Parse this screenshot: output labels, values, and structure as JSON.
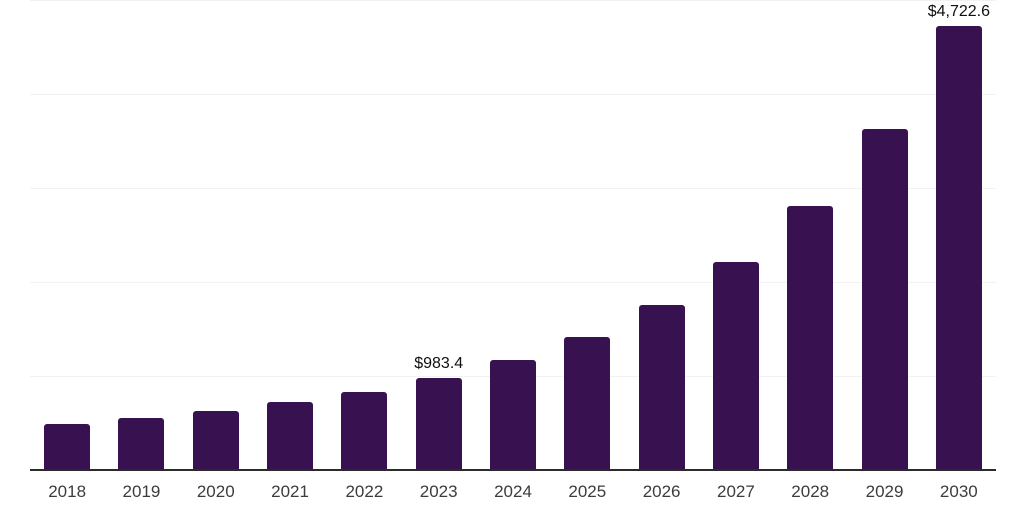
{
  "chart_data": {
    "type": "bar",
    "title": "",
    "xlabel": "",
    "ylabel": "",
    "categories": [
      "2018",
      "2019",
      "2020",
      "2021",
      "2022",
      "2023",
      "2024",
      "2025",
      "2026",
      "2027",
      "2028",
      "2029",
      "2030"
    ],
    "values": [
      490,
      550,
      630,
      725,
      830,
      983.4,
      1170,
      1415,
      1755,
      2215,
      2810,
      3630,
      4722.6
    ],
    "value_labels": [
      "",
      "",
      "",
      "",
      "",
      "$983.4",
      "",
      "",
      "",
      "",
      "",
      "",
      "$4,722.6"
    ],
    "value_prefix": "$",
    "ylim": [
      0,
      5000
    ],
    "gridline_step": 1000,
    "grid": "horizontal",
    "y_tick_labels_visible": false,
    "legend": false
  },
  "colors": {
    "bar": "#371150",
    "grid": "#f2f2f2",
    "axis": "#2b2b2b",
    "x_tick_label": "#3c3c3c",
    "value_label": "#101010",
    "background": "#ffffff"
  }
}
